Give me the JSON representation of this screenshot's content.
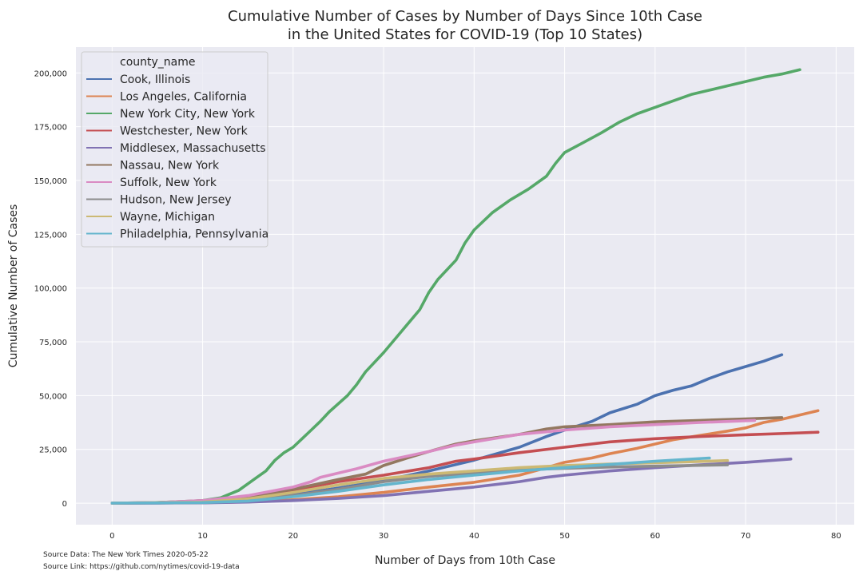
{
  "chart_data": {
    "type": "line",
    "title": [
      "Cumulative Number of Cases by Number of Days Since 10th Case",
      "in the United States for COVID-19 (Top 10 States)"
    ],
    "xlabel": "Number of Days from 10th Case",
    "ylabel": "Cumulative Number of Cases",
    "xlim": [
      -4,
      82
    ],
    "ylim": [
      -10000,
      212000
    ],
    "xticks": [
      0,
      10,
      20,
      30,
      40,
      50,
      60,
      70,
      80
    ],
    "xtick_labels": [
      "0",
      "10",
      "20",
      "30",
      "40",
      "50",
      "60",
      "70",
      "80"
    ],
    "yticks": [
      0,
      25000,
      50000,
      75000,
      100000,
      125000,
      150000,
      175000,
      200000
    ],
    "ytick_labels": [
      "0",
      "25,000",
      "50,000",
      "75,000",
      "100,000",
      "125,000",
      "150,000",
      "175,000",
      "200,000"
    ],
    "grid": true,
    "legend_title": "county_name",
    "legend_position": "upper-left",
    "series": [
      {
        "name": "Cook, Illinois",
        "color": "#4c72b0",
        "points": [
          [
            0,
            10
          ],
          [
            5,
            50
          ],
          [
            10,
            300
          ],
          [
            15,
            1500
          ],
          [
            20,
            4000
          ],
          [
            25,
            7000
          ],
          [
            30,
            10500
          ],
          [
            35,
            15000
          ],
          [
            40,
            20000
          ],
          [
            45,
            26000
          ],
          [
            48,
            31000
          ],
          [
            50,
            34000
          ],
          [
            53,
            38000
          ],
          [
            55,
            42000
          ],
          [
            58,
            46000
          ],
          [
            60,
            50000
          ],
          [
            62,
            52500
          ],
          [
            64,
            54500
          ],
          [
            66,
            58000
          ],
          [
            68,
            61000
          ],
          [
            70,
            63500
          ],
          [
            72,
            66000
          ],
          [
            74,
            69000
          ]
        ]
      },
      {
        "name": "Los Angeles, California",
        "color": "#dd8452",
        "points": [
          [
            0,
            10
          ],
          [
            10,
            250
          ],
          [
            15,
            600
          ],
          [
            20,
            1600
          ],
          [
            25,
            3000
          ],
          [
            30,
            5000
          ],
          [
            35,
            7500
          ],
          [
            40,
            9700
          ],
          [
            45,
            13000
          ],
          [
            48,
            16500
          ],
          [
            50,
            19000
          ],
          [
            53,
            21000
          ],
          [
            55,
            23000
          ],
          [
            58,
            25500
          ],
          [
            60,
            27500
          ],
          [
            62,
            29500
          ],
          [
            65,
            31500
          ],
          [
            68,
            33500
          ],
          [
            70,
            35000
          ],
          [
            72,
            37500
          ],
          [
            74,
            39000
          ],
          [
            76,
            41000
          ],
          [
            78,
            43000
          ]
        ]
      },
      {
        "name": "New York City, New York",
        "color": "#55a868",
        "points": [
          [
            0,
            10
          ],
          [
            4,
            200
          ],
          [
            8,
            700
          ],
          [
            10,
            1200
          ],
          [
            12,
            2500
          ],
          [
            14,
            6000
          ],
          [
            16,
            12000
          ],
          [
            17,
            15000
          ],
          [
            18,
            20000
          ],
          [
            19,
            23500
          ],
          [
            20,
            26000
          ],
          [
            21,
            30000
          ],
          [
            22,
            34000
          ],
          [
            23,
            38000
          ],
          [
            24,
            42500
          ],
          [
            26,
            50000
          ],
          [
            27,
            55000
          ],
          [
            28,
            61000
          ],
          [
            30,
            70000
          ],
          [
            32,
            80000
          ],
          [
            34,
            90000
          ],
          [
            35,
            98000
          ],
          [
            36,
            104000
          ],
          [
            38,
            113000
          ],
          [
            39,
            121000
          ],
          [
            40,
            127000
          ],
          [
            42,
            135000
          ],
          [
            44,
            141000
          ],
          [
            46,
            146000
          ],
          [
            48,
            152000
          ],
          [
            49,
            158000
          ],
          [
            50,
            163000
          ],
          [
            52,
            167500
          ],
          [
            54,
            172000
          ],
          [
            56,
            177000
          ],
          [
            58,
            181000
          ],
          [
            60,
            184000
          ],
          [
            62,
            187000
          ],
          [
            64,
            190000
          ],
          [
            66,
            192000
          ],
          [
            68,
            194000
          ],
          [
            70,
            196000
          ],
          [
            72,
            198000
          ],
          [
            74,
            199500
          ],
          [
            76,
            201500
          ]
        ]
      },
      {
        "name": "Westchester, New York",
        "color": "#c44e52",
        "points": [
          [
            0,
            10
          ],
          [
            5,
            200
          ],
          [
            10,
            800
          ],
          [
            15,
            2500
          ],
          [
            20,
            6000
          ],
          [
            25,
            10000
          ],
          [
            30,
            13000
          ],
          [
            35,
            16500
          ],
          [
            38,
            19500
          ],
          [
            40,
            20500
          ],
          [
            45,
            23500
          ],
          [
            50,
            26000
          ],
          [
            55,
            28500
          ],
          [
            60,
            30000
          ],
          [
            65,
            31000
          ],
          [
            70,
            31800
          ],
          [
            75,
            32500
          ],
          [
            78,
            33000
          ]
        ]
      },
      {
        "name": "Middlesex, Massachusetts",
        "color": "#8172b3",
        "points": [
          [
            0,
            10
          ],
          [
            10,
            150
          ],
          [
            15,
            500
          ],
          [
            20,
            1200
          ],
          [
            25,
            2200
          ],
          [
            30,
            3500
          ],
          [
            35,
            5500
          ],
          [
            40,
            7500
          ],
          [
            45,
            10000
          ],
          [
            48,
            12000
          ],
          [
            50,
            13000
          ],
          [
            55,
            15000
          ],
          [
            60,
            16500
          ],
          [
            65,
            17800
          ],
          [
            70,
            19000
          ],
          [
            75,
            20500
          ]
        ]
      },
      {
        "name": "Nassau, New York",
        "color": "#937860",
        "points": [
          [
            0,
            10
          ],
          [
            5,
            300
          ],
          [
            10,
            1200
          ],
          [
            15,
            3000
          ],
          [
            20,
            6500
          ],
          [
            25,
            11000
          ],
          [
            28,
            13500
          ],
          [
            30,
            17500
          ],
          [
            33,
            21500
          ],
          [
            35,
            24000
          ],
          [
            38,
            27500
          ],
          [
            40,
            29000
          ],
          [
            45,
            32000
          ],
          [
            48,
            34500
          ],
          [
            50,
            35500
          ],
          [
            55,
            36500
          ],
          [
            60,
            37800
          ],
          [
            65,
            38500
          ],
          [
            70,
            39200
          ],
          [
            74,
            39800
          ]
        ]
      },
      {
        "name": "Suffolk, New York",
        "color": "#da8bc3",
        "points": [
          [
            0,
            10
          ],
          [
            5,
            300
          ],
          [
            10,
            1200
          ],
          [
            15,
            3500
          ],
          [
            20,
            7500
          ],
          [
            22,
            10000
          ],
          [
            23,
            12000
          ],
          [
            25,
            14000
          ],
          [
            27,
            16000
          ],
          [
            30,
            19500
          ],
          [
            35,
            24000
          ],
          [
            38,
            27000
          ],
          [
            40,
            28500
          ],
          [
            45,
            32000
          ],
          [
            50,
            34000
          ],
          [
            55,
            35500
          ],
          [
            60,
            36500
          ],
          [
            65,
            37500
          ],
          [
            71,
            38500
          ]
        ]
      },
      {
        "name": "Hudson, New Jersey",
        "color": "#8c8c8c",
        "points": [
          [
            0,
            10
          ],
          [
            10,
            300
          ],
          [
            15,
            1200
          ],
          [
            20,
            3500
          ],
          [
            25,
            6500
          ],
          [
            30,
            10000
          ],
          [
            35,
            12500
          ],
          [
            40,
            14000
          ],
          [
            45,
            15500
          ],
          [
            50,
            16200
          ],
          [
            55,
            16800
          ],
          [
            60,
            17200
          ],
          [
            65,
            17600
          ],
          [
            68,
            17800
          ]
        ]
      },
      {
        "name": "Wayne, Michigan",
        "color": "#ccb974",
        "points": [
          [
            0,
            10
          ],
          [
            10,
            500
          ],
          [
            15,
            2000
          ],
          [
            20,
            5000
          ],
          [
            25,
            8500
          ],
          [
            30,
            11500
          ],
          [
            35,
            13500
          ],
          [
            40,
            15000
          ],
          [
            45,
            16500
          ],
          [
            50,
            17500
          ],
          [
            55,
            18200
          ],
          [
            60,
            18800
          ],
          [
            65,
            19400
          ],
          [
            68,
            19800
          ]
        ]
      },
      {
        "name": "Philadelphia, Pennsylvania",
        "color": "#64b5cd",
        "points": [
          [
            0,
            10
          ],
          [
            10,
            300
          ],
          [
            15,
            1000
          ],
          [
            20,
            3000
          ],
          [
            25,
            5500
          ],
          [
            30,
            8500
          ],
          [
            35,
            11000
          ],
          [
            40,
            13000
          ],
          [
            45,
            15000
          ],
          [
            50,
            16500
          ],
          [
            55,
            18000
          ],
          [
            60,
            19500
          ],
          [
            66,
            21000
          ]
        ]
      }
    ]
  },
  "footer": {
    "source_data": "Source Data: The New York Times 2020-05-22",
    "source_link": "Source Link: https://github.com/nytimes/covid-19-data"
  }
}
